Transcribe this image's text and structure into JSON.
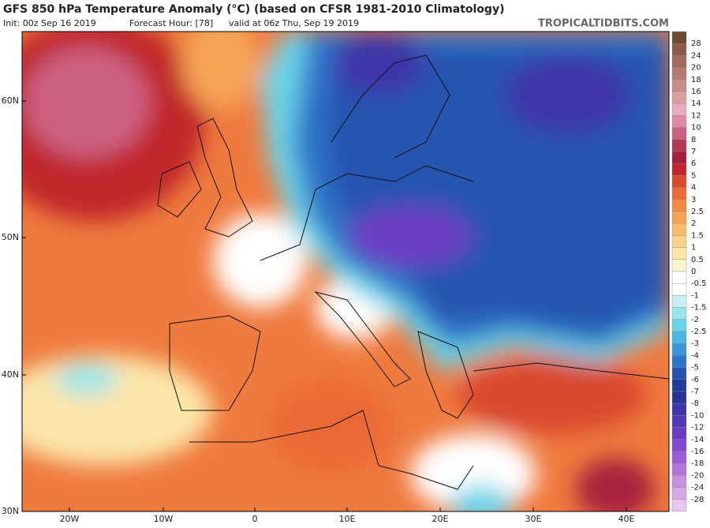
{
  "header": {
    "title": "GFS 850 hPa Temperature Anomaly (°C) (based on CFSR 1981-2010 Climatology)",
    "init": "Init: 00z Sep 16 2019",
    "forecast": "Forecast Hour: [78]",
    "valid": "valid at 06z Thu, Sep 19 2019",
    "source": "TROPICALTIDBITS.COM"
  },
  "lat_labels": [
    "60N",
    "50N",
    "40N",
    "30N"
  ],
  "lon_labels": [
    "20W",
    "10W",
    "0",
    "10E",
    "20E",
    "30E",
    "40E"
  ],
  "colorbar": {
    "labels": [
      "28",
      "24",
      "20",
      "18",
      "16",
      "14",
      "12",
      "10",
      "8",
      "7",
      "6",
      "5",
      "4",
      "3",
      "2.5",
      "2",
      "1.5",
      "1",
      "0.5",
      "0",
      "-0.5",
      "-1",
      "-1.5",
      "-2",
      "-2.5",
      "-3",
      "-4",
      "-5",
      "-6",
      "-7",
      "-8",
      "-10",
      "-12",
      "-14",
      "-16",
      "-18",
      "-20",
      "-24",
      "-28"
    ],
    "colors": [
      "#6e4a32",
      "#8b5a4a",
      "#a06a5c",
      "#b57a70",
      "#c98c88",
      "#d9a0a2",
      "#e8aec0",
      "#e08aa6",
      "#cc6282",
      "#b23a58",
      "#a8213c",
      "#c0262c",
      "#d94a2e",
      "#ea6a36",
      "#f28a44",
      "#f5a456",
      "#f8bc6c",
      "#fad28a",
      "#fce6aa",
      "#fdf6cc",
      "#ffffff",
      "#ffffff",
      "#c8f0f2",
      "#98e6ec",
      "#6cd4e8",
      "#4ab8e2",
      "#3a96d8",
      "#2e74c8",
      "#2554b0",
      "#1e3c9a",
      "#2a3296",
      "#3c34a8",
      "#5236b4",
      "#6a3cc2",
      "#8448d0",
      "#9c5cd8",
      "#b474dc",
      "#c890e0",
      "#d6a8e6",
      "#e8c4ee"
    ]
  }
}
